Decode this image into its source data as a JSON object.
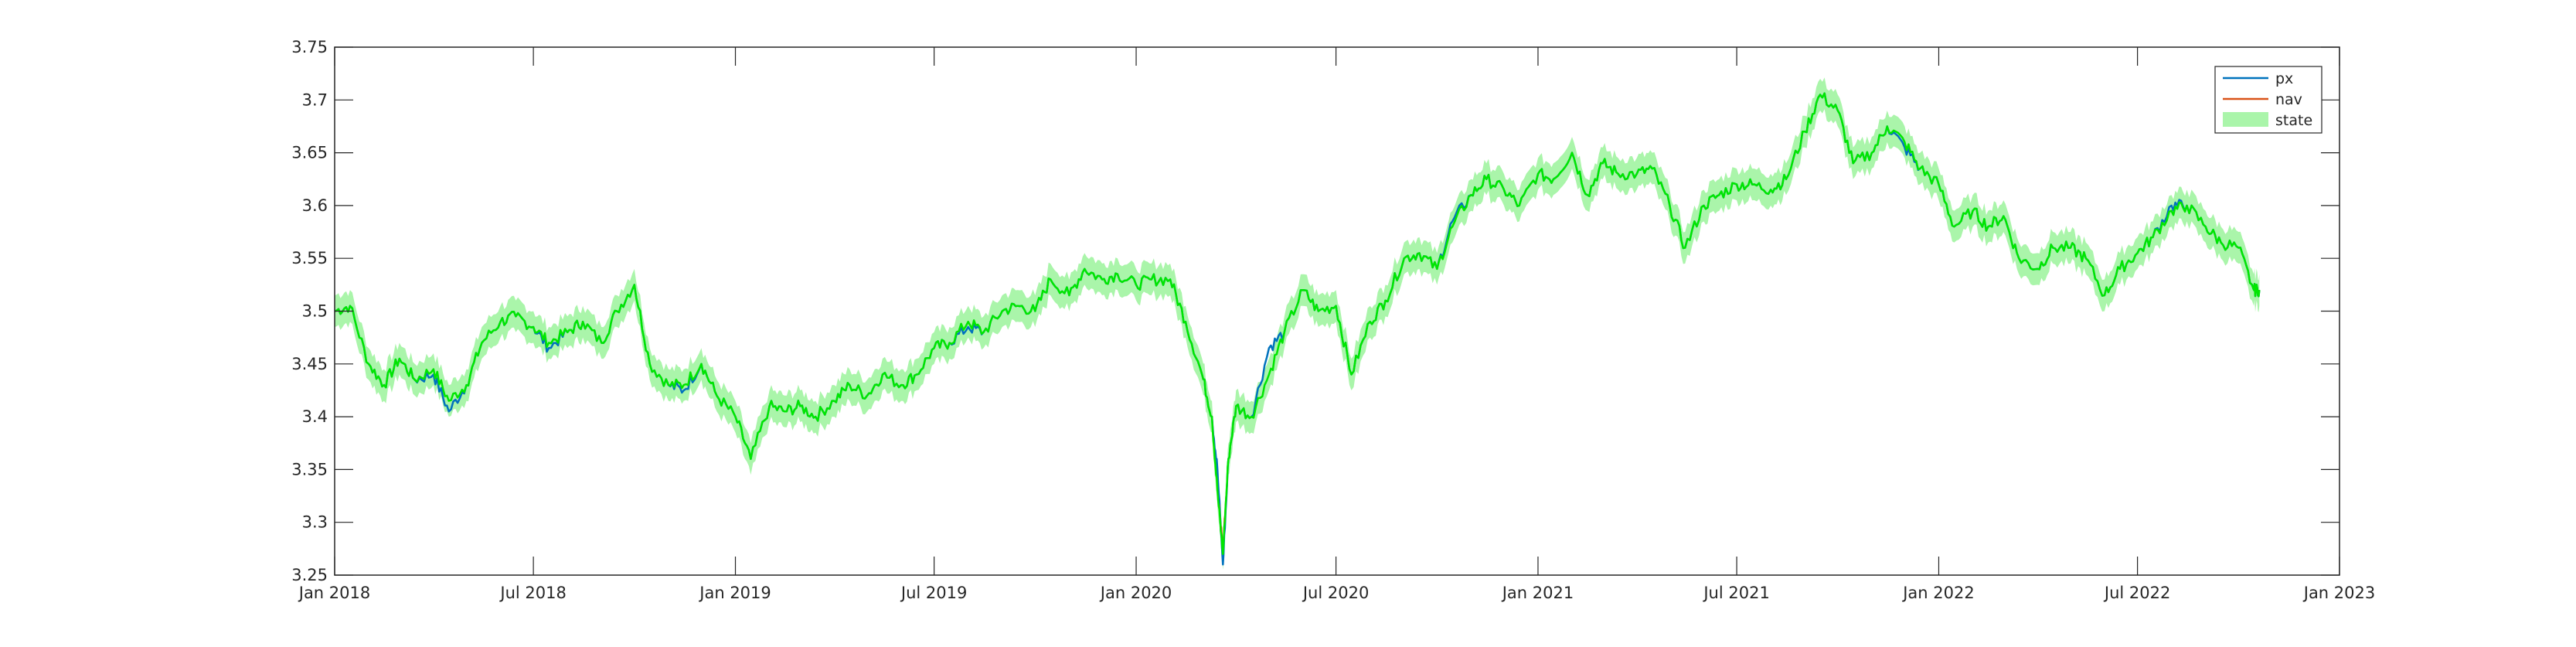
{
  "chart_data": {
    "type": "line",
    "title": "",
    "xlabel": "",
    "ylabel": "",
    "x_range": [
      "2018-01-01",
      "2023-01-01"
    ],
    "x_ticks": [
      {
        "date": "2018-01-01",
        "label": "Jan 2018"
      },
      {
        "date": "2018-07-01",
        "label": "Jul 2018"
      },
      {
        "date": "2019-01-01",
        "label": "Jan 2019"
      },
      {
        "date": "2019-07-01",
        "label": "Jul 2019"
      },
      {
        "date": "2020-01-01",
        "label": "Jan 2020"
      },
      {
        "date": "2020-07-01",
        "label": "Jul 2020"
      },
      {
        "date": "2021-01-01",
        "label": "Jan 2021"
      },
      {
        "date": "2021-07-01",
        "label": "Jul 2021"
      },
      {
        "date": "2022-01-01",
        "label": "Jan 2022"
      },
      {
        "date": "2022-07-01",
        "label": "Jul 2022"
      },
      {
        "date": "2023-01-01",
        "label": "Jan 2023"
      }
    ],
    "ylim": [
      3.25,
      3.75
    ],
    "y_ticks": [
      {
        "value": 3.25,
        "label": "3.25"
      },
      {
        "value": 3.3,
        "label": "3.3"
      },
      {
        "value": 3.35,
        "label": "3.35"
      },
      {
        "value": 3.4,
        "label": "3.4"
      },
      {
        "value": 3.45,
        "label": "3.45"
      },
      {
        "value": 3.5,
        "label": "3.5"
      },
      {
        "value": 3.55,
        "label": "3.55"
      },
      {
        "value": 3.6,
        "label": "3.6"
      },
      {
        "value": 3.65,
        "label": "3.65"
      },
      {
        "value": 3.7,
        "label": "3.7"
      },
      {
        "value": 3.75,
        "label": "3.75"
      }
    ],
    "grid": false,
    "box": true,
    "legend_position": "top-right",
    "band_halfwidth": 0.015,
    "series": [
      {
        "name": "px",
        "color": "#0072BD",
        "kind": "line"
      },
      {
        "name": "nav",
        "color": "#D95319",
        "kind": "line"
      },
      {
        "name": "state",
        "color": "#00E600",
        "band_color": "#AAF5AA",
        "kind": "band"
      }
    ],
    "x": [
      "2018-01-01",
      "2018-01-15",
      "2018-02-01",
      "2018-02-15",
      "2018-03-01",
      "2018-03-15",
      "2018-04-01",
      "2018-04-15",
      "2018-05-01",
      "2018-05-15",
      "2018-06-01",
      "2018-06-15",
      "2018-07-01",
      "2018-07-15",
      "2018-08-01",
      "2018-08-15",
      "2018-09-01",
      "2018-09-15",
      "2018-10-01",
      "2018-10-15",
      "2018-11-01",
      "2018-11-15",
      "2018-12-01",
      "2018-12-15",
      "2019-01-01",
      "2019-01-15",
      "2019-02-01",
      "2019-02-15",
      "2019-03-01",
      "2019-03-15",
      "2019-04-01",
      "2019-04-15",
      "2019-05-01",
      "2019-05-15",
      "2019-06-01",
      "2019-06-15",
      "2019-07-01",
      "2019-07-15",
      "2019-08-01",
      "2019-08-15",
      "2019-09-01",
      "2019-09-15",
      "2019-10-01",
      "2019-10-15",
      "2019-11-01",
      "2019-11-15",
      "2019-12-01",
      "2019-12-15",
      "2020-01-01",
      "2020-01-15",
      "2020-02-01",
      "2020-02-15",
      "2020-03-01",
      "2020-03-10",
      "2020-03-15",
      "2020-03-20",
      "2020-03-25",
      "2020-04-01",
      "2020-04-15",
      "2020-05-01",
      "2020-05-15",
      "2020-06-01",
      "2020-06-15",
      "2020-07-01",
      "2020-07-15",
      "2020-08-01",
      "2020-08-15",
      "2020-09-01",
      "2020-09-15",
      "2020-10-01",
      "2020-10-15",
      "2020-11-01",
      "2020-11-15",
      "2020-12-01",
      "2020-12-15",
      "2021-01-01",
      "2021-01-15",
      "2021-02-01",
      "2021-02-15",
      "2021-03-01",
      "2021-03-15",
      "2021-04-01",
      "2021-04-15",
      "2021-05-01",
      "2021-05-15",
      "2021-06-01",
      "2021-06-15",
      "2021-07-01",
      "2021-07-15",
      "2021-08-01",
      "2021-08-15",
      "2021-09-01",
      "2021-09-15",
      "2021-10-01",
      "2021-10-15",
      "2021-11-01",
      "2021-11-15",
      "2021-12-01",
      "2021-12-15",
      "2022-01-01",
      "2022-01-15",
      "2022-02-01",
      "2022-02-15",
      "2022-03-01",
      "2022-03-15",
      "2022-04-01",
      "2022-04-15",
      "2022-05-01",
      "2022-05-15",
      "2022-06-01",
      "2022-06-15",
      "2022-07-01",
      "2022-07-15",
      "2022-08-01",
      "2022-08-15",
      "2022-09-01",
      "2022-09-15",
      "2022-10-01",
      "2022-10-15",
      "2022-10-20"
    ],
    "state": [
      3.5,
      3.505,
      3.45,
      3.43,
      3.455,
      3.435,
      3.445,
      3.415,
      3.43,
      3.47,
      3.49,
      3.495,
      3.485,
      3.47,
      3.48,
      3.49,
      3.47,
      3.5,
      3.525,
      3.45,
      3.43,
      3.43,
      3.45,
      3.42,
      3.4,
      3.36,
      3.41,
      3.405,
      3.41,
      3.4,
      3.415,
      3.43,
      3.42,
      3.44,
      3.43,
      3.44,
      3.465,
      3.47,
      3.49,
      3.48,
      3.5,
      3.505,
      3.5,
      3.53,
      3.515,
      3.54,
      3.53,
      3.535,
      3.525,
      3.53,
      3.53,
      3.49,
      3.44,
      3.4,
      3.33,
      3.27,
      3.36,
      3.41,
      3.4,
      3.44,
      3.48,
      3.52,
      3.5,
      3.505,
      3.44,
      3.49,
      3.51,
      3.55,
      3.555,
      3.54,
      3.58,
      3.61,
      3.625,
      3.615,
      3.6,
      3.63,
      3.625,
      3.65,
      3.61,
      3.64,
      3.63,
      3.63,
      3.635,
      3.6,
      3.56,
      3.6,
      3.61,
      3.62,
      3.62,
      3.615,
      3.625,
      3.67,
      3.705,
      3.69,
      3.64,
      3.65,
      3.675,
      3.66,
      3.635,
      3.62,
      3.58,
      3.595,
      3.58,
      3.59,
      3.55,
      3.54,
      3.56,
      3.56,
      3.55,
      3.515,
      3.54,
      3.555,
      3.57,
      3.595,
      3.6,
      3.58,
      3.565,
      3.56,
      3.52,
      3.52
    ],
    "px": [
      3.5,
      3.505,
      3.45,
      3.43,
      3.455,
      3.435,
      3.44,
      3.405,
      3.43,
      3.47,
      3.49,
      3.495,
      3.485,
      3.465,
      3.48,
      3.49,
      3.47,
      3.5,
      3.525,
      3.45,
      3.43,
      3.425,
      3.45,
      3.42,
      3.4,
      3.36,
      3.41,
      3.405,
      3.41,
      3.4,
      3.415,
      3.43,
      3.42,
      3.44,
      3.43,
      3.44,
      3.465,
      3.47,
      3.485,
      3.48,
      3.5,
      3.505,
      3.5,
      3.53,
      3.515,
      3.54,
      3.53,
      3.535,
      3.525,
      3.53,
      3.53,
      3.49,
      3.44,
      3.4,
      3.35,
      3.26,
      3.36,
      3.41,
      3.4,
      3.465,
      3.48,
      3.52,
      3.5,
      3.505,
      3.44,
      3.49,
      3.51,
      3.55,
      3.555,
      3.54,
      3.585,
      3.61,
      3.625,
      3.615,
      3.6,
      3.63,
      3.625,
      3.65,
      3.61,
      3.64,
      3.63,
      3.63,
      3.635,
      3.6,
      3.56,
      3.6,
      3.61,
      3.62,
      3.62,
      3.615,
      3.625,
      3.67,
      3.705,
      3.69,
      3.64,
      3.65,
      3.675,
      3.655,
      3.635,
      3.62,
      3.58,
      3.595,
      3.58,
      3.59,
      3.55,
      3.54,
      3.56,
      3.56,
      3.55,
      3.515,
      3.54,
      3.555,
      3.57,
      3.6,
      3.6,
      3.58,
      3.565,
      3.56,
      3.52,
      3.52
    ],
    "nav": [
      3.5,
      3.505,
      3.45,
      3.43,
      3.455,
      3.435,
      3.445,
      3.415,
      3.43,
      3.47,
      3.49,
      3.495,
      3.485,
      3.47,
      3.48,
      3.49,
      3.47,
      3.5,
      3.525,
      3.45,
      3.43,
      3.43,
      3.45,
      3.42,
      3.4,
      3.36,
      3.41,
      3.405,
      3.41,
      3.4,
      3.415,
      3.43,
      3.42,
      3.44,
      3.43,
      3.44,
      3.465,
      3.47,
      3.49,
      3.48,
      3.5,
      3.505,
      3.5,
      3.53,
      3.515,
      3.54,
      3.53,
      3.535,
      3.525,
      3.53,
      3.53,
      3.49,
      3.44,
      3.4,
      3.33,
      3.28,
      3.36,
      3.41,
      3.4,
      3.44,
      3.48,
      3.52,
      3.5,
      3.505,
      3.44,
      3.49,
      3.51,
      3.55,
      3.555,
      3.54,
      3.58,
      3.61,
      3.625,
      3.615,
      3.6,
      3.63,
      3.625,
      3.65,
      3.61,
      3.64,
      3.63,
      3.63,
      3.635,
      3.6,
      3.56,
      3.6,
      3.61,
      3.62,
      3.62,
      3.615,
      3.625,
      3.67,
      3.705,
      3.69,
      3.64,
      3.65,
      3.675,
      3.66,
      3.635,
      3.62,
      3.58,
      3.595,
      3.58,
      3.59,
      3.55,
      3.54,
      3.56,
      3.56,
      3.55,
      3.515,
      3.54,
      3.555,
      3.57,
      3.595,
      3.6,
      3.58,
      3.565,
      3.56,
      3.52,
      3.52
    ]
  }
}
